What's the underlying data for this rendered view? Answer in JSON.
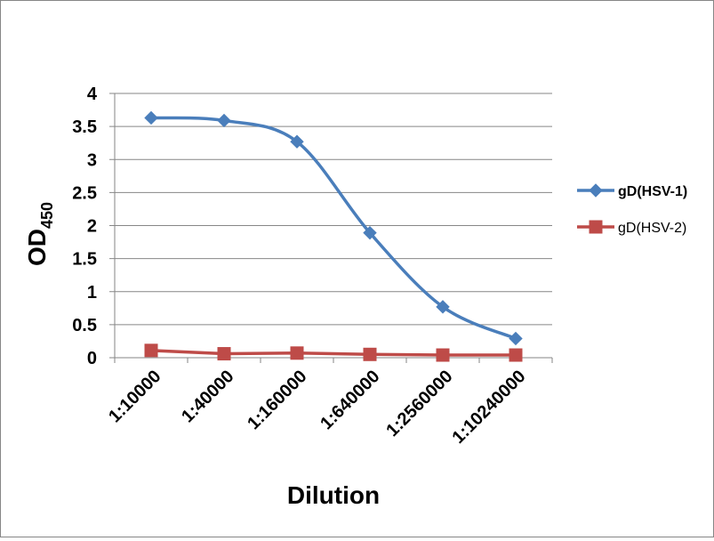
{
  "chart_data": {
    "type": "line",
    "title": "",
    "xlabel": "Dilution",
    "ylabel": {
      "main": "OD",
      "sub": "450"
    },
    "categories": [
      "1:10000",
      "1:40000",
      "1:160000",
      "1:640000",
      "1:2560000",
      "1:10240000"
    ],
    "ylim": [
      0,
      4
    ],
    "yticks": [
      "0",
      "0.5",
      "1",
      "1.5",
      "2",
      "2.5",
      "3",
      "3.5",
      "4"
    ],
    "grid": true,
    "legend_position": "right",
    "series": [
      {
        "name": "gD(HSV-1)",
        "values": [
          3.63,
          3.59,
          3.27,
          1.89,
          0.77,
          0.29
        ],
        "color": "#4a7ebb",
        "marker": "diamond",
        "smooth": true,
        "bold_label": true
      },
      {
        "name": "gD(HSV-2)",
        "values": [
          0.11,
          0.06,
          0.07,
          0.05,
          0.04,
          0.04
        ],
        "color": "#be4b48",
        "marker": "square",
        "smooth": false,
        "bold_label": false
      }
    ]
  }
}
